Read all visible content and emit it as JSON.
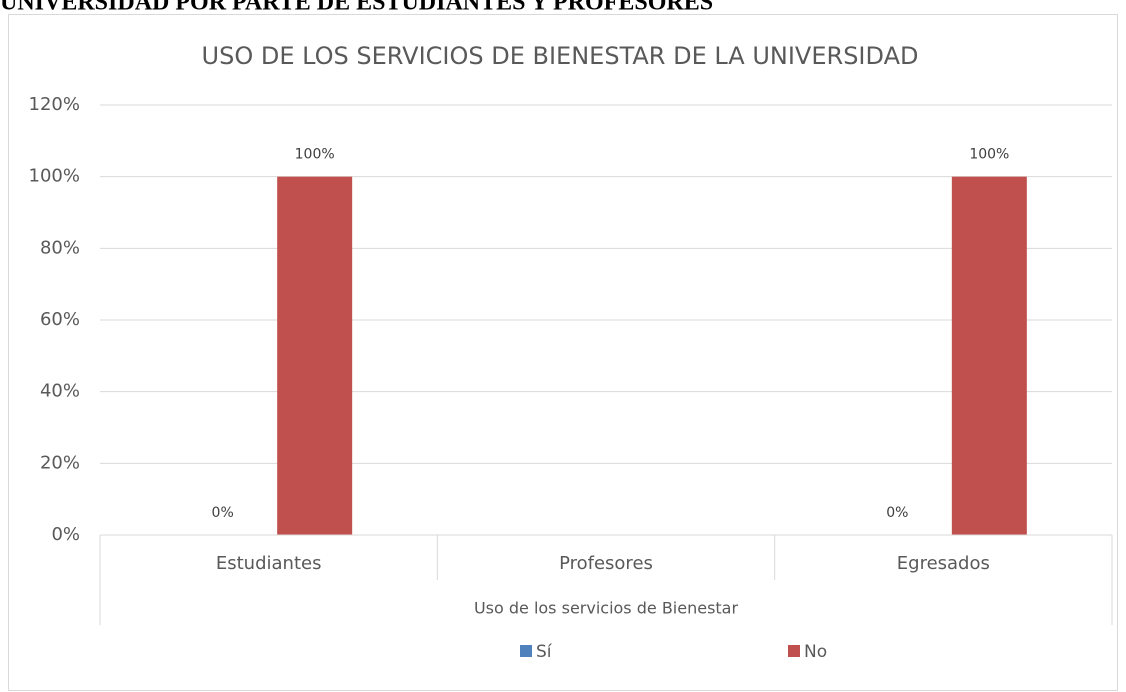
{
  "heading": "UNIVERSIDAD POR PARTE DE ESTUDIANTES Y PROFESORES",
  "chart_data": {
    "type": "bar",
    "title": "USO DE LOS SERVICIOS DE BIENESTAR DE LA UNIVERSIDAD",
    "x_label": "Uso de los servicios de Bienestar",
    "categories": [
      "Estudiantes",
      "Profesores",
      "Egresados"
    ],
    "series": [
      {
        "name": "Sí",
        "color": "#4f81bd",
        "values": [
          0,
          null,
          0
        ],
        "value_labels": [
          "0%",
          null,
          "0%"
        ]
      },
      {
        "name": "No",
        "color": "#c0504d",
        "values": [
          100,
          null,
          100
        ],
        "value_labels": [
          "100%",
          null,
          "100%"
        ]
      }
    ],
    "ylim": [
      0,
      120
    ],
    "yticks": [
      {
        "value": 0,
        "label": "0%"
      },
      {
        "value": 20,
        "label": "20%"
      },
      {
        "value": 40,
        "label": "40%"
      },
      {
        "value": 60,
        "label": "60%"
      },
      {
        "value": 80,
        "label": "80%"
      },
      {
        "value": 100,
        "label": "100%"
      },
      {
        "value": 120,
        "label": "120%"
      }
    ],
    "grid": true,
    "legend": "bottom"
  }
}
